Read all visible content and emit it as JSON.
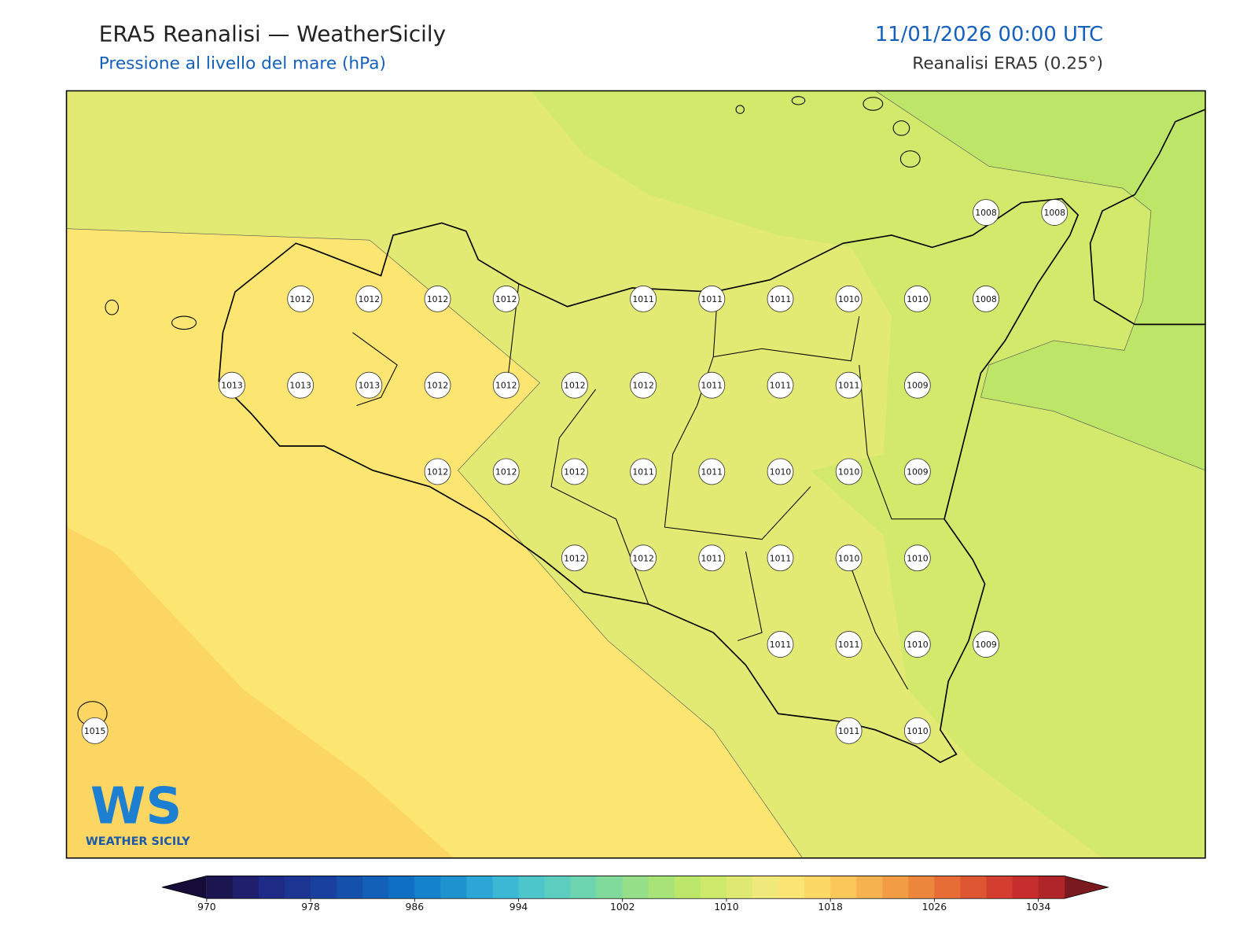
{
  "header": {
    "title": "ERA5 Reanalisi — WeatherSicily",
    "subtitle": "Pressione al livello del mare (hPa)",
    "datetime": "11/01/2026 00:00 UTC",
    "source": "Reanalisi ERA5 (0.25°)"
  },
  "map": {
    "stations": [
      1008,
      1008,
      1012,
      1012,
      1012,
      1012,
      1011,
      1011,
      1011,
      1010,
      1010,
      1008,
      1013,
      1013,
      1013,
      1012,
      1012,
      1012,
      1012,
      1011,
      1011,
      1011,
      1009,
      1012,
      1012,
      1012,
      1011,
      1011,
      1010,
      1010,
      1009,
      1012,
      1012,
      1011,
      1011,
      1010,
      1010,
      1011,
      1011,
      1010,
      1009,
      1015,
      1011,
      1010
    ]
  },
  "colorbar": {
    "lim": [
      970,
      1036
    ],
    "ticks": [
      970,
      978,
      986,
      994,
      1002,
      1010,
      1018,
      1026,
      1034
    ],
    "under_color": "#150c3a",
    "over_color": "#7a1a1e",
    "colors": [
      "#1b1650",
      "#1f1f6e",
      "#1e2a85",
      "#1c3592",
      "#1a409f",
      "#1550ac",
      "#1360b8",
      "#0f70c3",
      "#1583cb",
      "#1f93d0",
      "#2ca6d6",
      "#3bb8d4",
      "#4cc6cb",
      "#5ccec0",
      "#6dd4b0",
      "#80da9c",
      "#95df88",
      "#a8e377",
      "#bbe66a",
      "#cde86a",
      "#dde973",
      "#eee97a",
      "#fbe474",
      "#fcd866",
      "#fbc75a",
      "#f6b24f",
      "#f29d46",
      "#ed863d",
      "#e66d36",
      "#de5532",
      "#d33e2f",
      "#c52e2d",
      "#b0252a"
    ]
  },
  "logo": {
    "mark": "WS",
    "text": "WEATHER SICILY"
  }
}
